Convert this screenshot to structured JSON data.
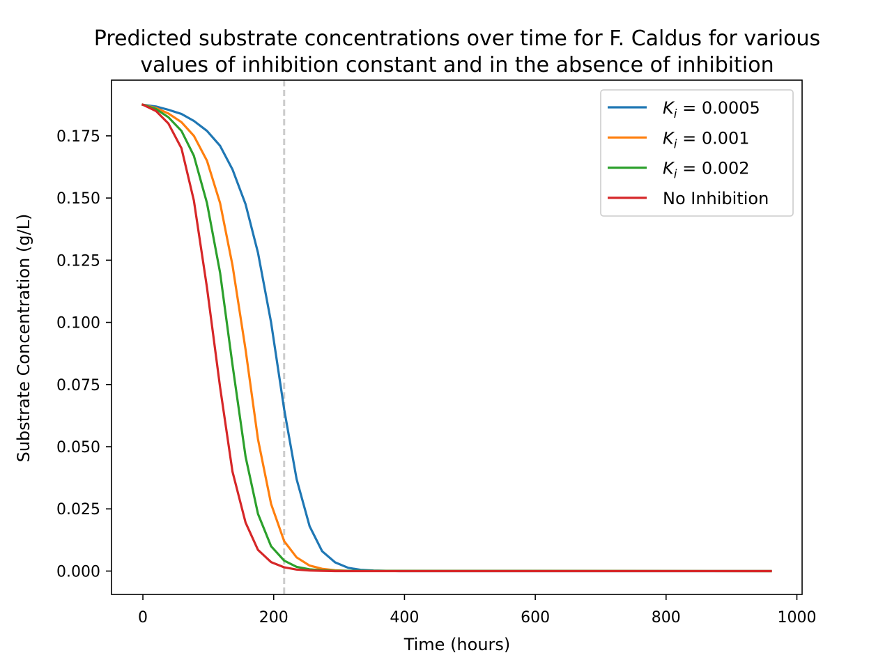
{
  "chart_data": {
    "type": "line",
    "title": "Predicted substrate concentrations over time for F. Caldus for various values of inhibition constant and in the absence of inhibition",
    "title_lines": [
      "Predicted substrate concentrations over time for F. Caldus for various",
      "values of inhibition constant and in the absence of inhibition"
    ],
    "xlabel": "Time (hours)",
    "ylabel": "Substrate Concentration (g/L)",
    "xlim": [
      -48,
      1008
    ],
    "ylim": [
      -0.0094,
      0.1974
    ],
    "xticks": [
      0,
      200,
      400,
      600,
      800,
      1000
    ],
    "xtick_labels": [
      "0",
      "200",
      "400",
      "600",
      "800",
      "1000"
    ],
    "yticks": [
      0.0,
      0.025,
      0.05,
      0.075,
      0.1,
      0.125,
      0.15,
      0.175
    ],
    "ytick_labels": [
      "0.000",
      "0.025",
      "0.050",
      "0.075",
      "0.100",
      "0.125",
      "0.150",
      "0.175"
    ],
    "grid": false,
    "legend_position": "top-right",
    "vline": {
      "x": 216,
      "color": "#cccccc",
      "style": "dashed"
    },
    "series": [
      {
        "name": "K_i = 0.0005",
        "legend_main": "K",
        "legend_sub": "i",
        "legend_rest": " = 0.0005",
        "color": "#1f77b4",
        "x": [
          0,
          20,
          39,
          59,
          78,
          98,
          118,
          137,
          157,
          176,
          196,
          216,
          235,
          255,
          274,
          294,
          314,
          333,
          353,
          372,
          392,
          960
        ],
        "y": [
          0.1875,
          0.1868,
          0.1855,
          0.1838,
          0.181,
          0.177,
          0.171,
          0.1615,
          0.1475,
          0.128,
          0.1,
          0.065,
          0.037,
          0.018,
          0.008,
          0.0035,
          0.0013,
          0.0005,
          0.0002,
          0.0001,
          0.0,
          0.0
        ]
      },
      {
        "name": "K_i = 0.001",
        "legend_main": "K",
        "legend_sub": "i",
        "legend_rest": " = 0.001",
        "color": "#ff7f0e",
        "x": [
          0,
          20,
          39,
          59,
          78,
          98,
          118,
          137,
          157,
          176,
          196,
          216,
          235,
          255,
          274,
          294,
          314,
          960
        ],
        "y": [
          0.1875,
          0.1862,
          0.184,
          0.1805,
          0.175,
          0.165,
          0.148,
          0.123,
          0.089,
          0.053,
          0.027,
          0.012,
          0.0055,
          0.0022,
          0.0009,
          0.0003,
          0.0001,
          0.0
        ]
      },
      {
        "name": "K_i = 0.002",
        "legend_main": "K",
        "legend_sub": "i",
        "legend_rest": " = 0.002",
        "color": "#2ca02c",
        "x": [
          0,
          20,
          39,
          59,
          78,
          98,
          118,
          137,
          157,
          176,
          196,
          216,
          235,
          255,
          274,
          294,
          960
        ],
        "y": [
          0.1875,
          0.1858,
          0.1825,
          0.177,
          0.167,
          0.148,
          0.12,
          0.083,
          0.046,
          0.023,
          0.01,
          0.0042,
          0.0017,
          0.0007,
          0.0003,
          0.0001,
          0.0
        ]
      },
      {
        "name": "No Inhibition",
        "legend_main": "No Inhibition",
        "legend_sub": "",
        "legend_rest": "",
        "color": "#d62728",
        "x": [
          0,
          20,
          39,
          59,
          78,
          98,
          118,
          137,
          157,
          176,
          196,
          216,
          235,
          255,
          274,
          294,
          960
        ],
        "y": [
          0.1875,
          0.185,
          0.18,
          0.17,
          0.149,
          0.114,
          0.074,
          0.04,
          0.0195,
          0.0085,
          0.0036,
          0.0015,
          0.0006,
          0.0002,
          0.0001,
          0.0,
          0.0
        ]
      }
    ]
  }
}
